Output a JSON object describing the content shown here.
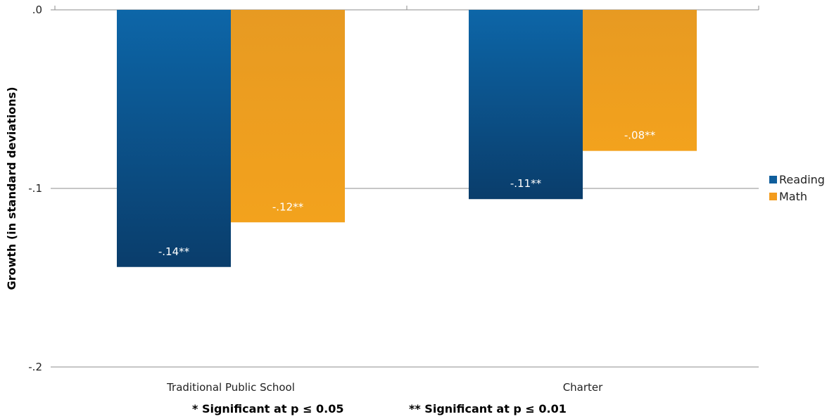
{
  "chart_data": {
    "type": "bar",
    "categories": [
      "Traditional Public School",
      "Charter"
    ],
    "series": [
      {
        "name": "Reading",
        "values": [
          -0.144,
          -0.106
        ],
        "labels": [
          "-.14**",
          "-.11**"
        ]
      },
      {
        "name": "Math",
        "values": [
          -0.119,
          -0.079
        ],
        "labels": [
          "-.12**",
          "-.08**"
        ]
      }
    ],
    "ylim": [
      -0.2,
      0.0
    ],
    "yticks": [
      0.0,
      -0.1,
      -0.2
    ],
    "ytick_labels": [
      ".0",
      "-.1",
      "-.2"
    ],
    "ylabel": "Growth (in standard deviations)",
    "xlabel": "",
    "grid": true,
    "legend_position": "right",
    "footnotes": [
      "* Significant  at p ≤ 0.05",
      "** Significant  at p ≤ 0.01"
    ]
  },
  "colors": {
    "Reading": "#0f5e9c",
    "Math": "#f39c1e"
  }
}
